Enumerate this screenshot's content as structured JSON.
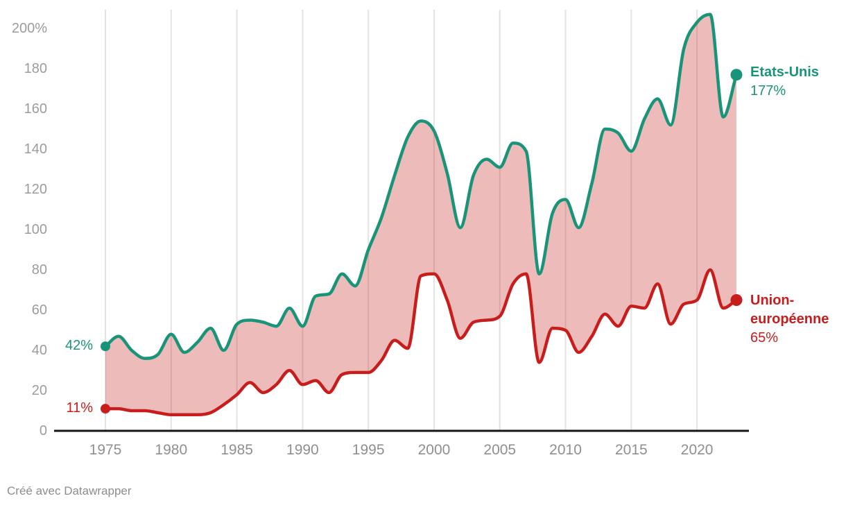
{
  "footer": {
    "attribution": "Créé avec Datawrapper"
  },
  "colors": {
    "us": "#1a9478",
    "eu": "#c71e1d",
    "fill": "rgba(199,30,29,0.30)",
    "grid": "#e3e3e3",
    "axis": "#161616",
    "tick_text": "#9c9c9c"
  },
  "chart_data": {
    "type": "area",
    "title": "",
    "xlabel": "",
    "ylabel": "",
    "ylim": [
      0,
      200
    ],
    "grid": "vertical-only",
    "legend_position": "end-of-line labels",
    "x": [
      1975,
      1976,
      1977,
      1978,
      1979,
      1980,
      1981,
      1982,
      1983,
      1984,
      1985,
      1986,
      1987,
      1988,
      1989,
      1990,
      1991,
      1992,
      1993,
      1994,
      1995,
      1996,
      1997,
      1998,
      1999,
      2000,
      2001,
      2002,
      2003,
      2004,
      2005,
      2006,
      2007,
      2008,
      2009,
      2010,
      2011,
      2012,
      2013,
      2014,
      2015,
      2016,
      2017,
      2018,
      2019,
      2020,
      2021,
      2022,
      2023
    ],
    "series": [
      {
        "name": "Etats-Unis",
        "color": "#1a9478",
        "start_value_label": "42%",
        "end_value_label": "177%",
        "values": [
          42,
          47,
          40,
          36,
          38,
          48,
          39,
          44,
          51,
          40,
          53,
          55,
          54,
          52,
          61,
          52,
          67,
          68,
          78,
          72,
          90,
          106,
          127,
          146,
          154,
          149,
          128,
          101,
          127,
          135,
          131,
          143,
          139,
          78,
          108,
          115,
          101,
          123,
          150,
          148,
          139,
          155,
          165,
          152,
          190,
          203,
          207,
          156,
          177
        ]
      },
      {
        "name": "Union-européenne",
        "name_line1": "Union-",
        "name_line2": "européenne",
        "color": "#c71e1d",
        "start_value_label": "11%",
        "end_value_label": "65%",
        "values": [
          11,
          11,
          10,
          10,
          9,
          8,
          8,
          8,
          9,
          13,
          18,
          24,
          19,
          23,
          30,
          23,
          25,
          19,
          28,
          29,
          29,
          35,
          45,
          41,
          77,
          78,
          65,
          46,
          54,
          55,
          57,
          73,
          78,
          34,
          51,
          50,
          39,
          47,
          58,
          52,
          62,
          61,
          73,
          53,
          63,
          65,
          80,
          61,
          65
        ]
      }
    ],
    "yticks": [
      {
        "label": "200%",
        "value": 200
      },
      {
        "label": "180",
        "value": 180
      },
      {
        "label": "160",
        "value": 160
      },
      {
        "label": "140",
        "value": 140
      },
      {
        "label": "120",
        "value": 120
      },
      {
        "label": "100",
        "value": 100
      },
      {
        "label": "80",
        "value": 80
      },
      {
        "label": "60",
        "value": 60
      },
      {
        "label": "40",
        "value": 40
      },
      {
        "label": "20",
        "value": 20
      },
      {
        "label": "0",
        "value": 0
      }
    ],
    "xticks": [
      1975,
      1980,
      1985,
      1990,
      1995,
      2000,
      2005,
      2010,
      2015,
      2020
    ]
  }
}
